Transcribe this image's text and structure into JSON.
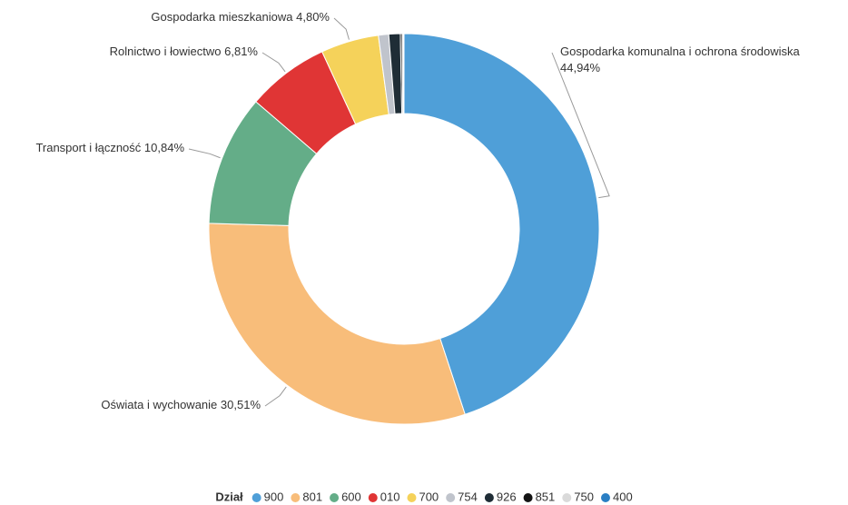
{
  "chart_data": {
    "type": "donut",
    "legend_title": "Dział",
    "categories": [
      "900",
      "801",
      "600",
      "010",
      "700",
      "754",
      "926",
      "851",
      "750",
      "400"
    ],
    "labels": [
      "Gospodarka komunalna i ochrona środowiska",
      "Oświata i wychowanie",
      "Transport i łączność",
      "Rolnictwo i łowiectwo",
      "Gospodarka mieszkaniowa",
      null,
      null,
      null,
      null,
      null
    ],
    "values": [
      44.94,
      30.51,
      10.84,
      6.81,
      4.8,
      0.85,
      0.95,
      0.15,
      0.1,
      0.05
    ],
    "value_labels": [
      "44,94%",
      "30,51%",
      "10,84%",
      "6,81%",
      "4,80%",
      null,
      null,
      null,
      null,
      null
    ],
    "colors": [
      "#4f9fd8",
      "#f8bd7a",
      "#64ad88",
      "#e03535",
      "#f5d25a",
      "#c0c4cc",
      "#1f2d36",
      "#141414",
      "#dadada",
      "#2a7fc4"
    ],
    "legend": "bottom"
  }
}
